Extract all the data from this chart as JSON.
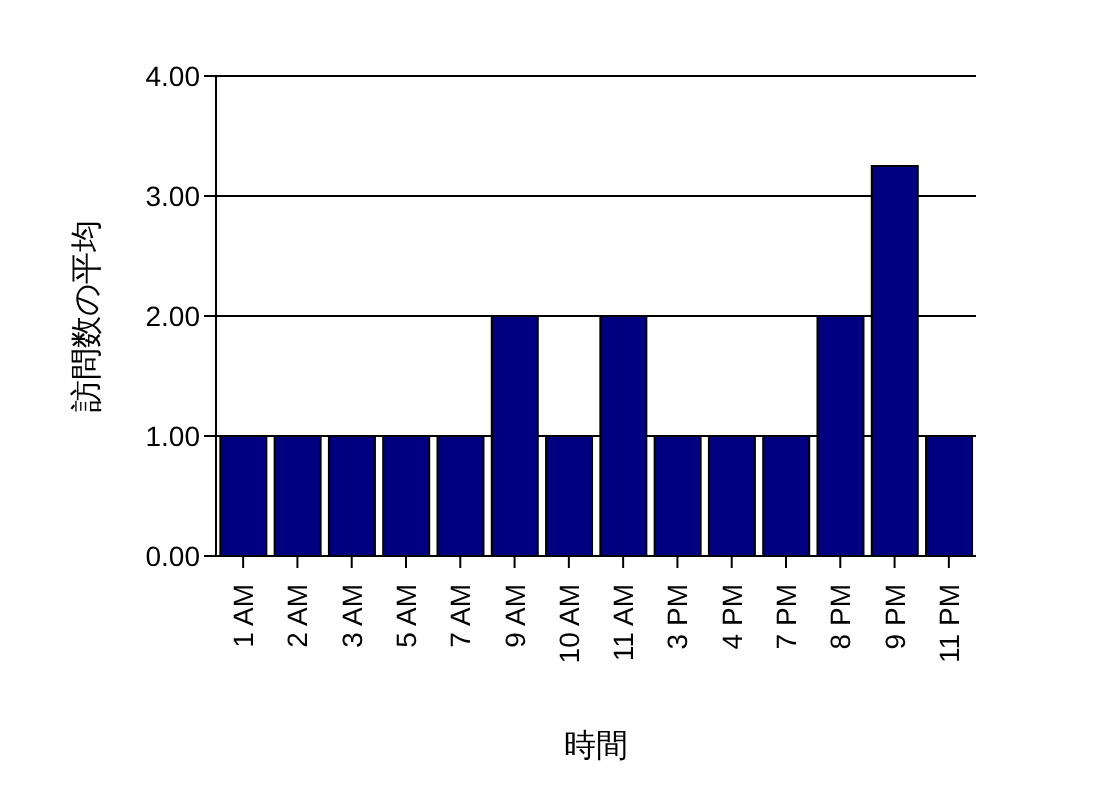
{
  "chart_data": {
    "type": "bar",
    "xlabel": "時間",
    "ylabel": "訪問数の平均",
    "categories": [
      "1 AM",
      "2 AM",
      "3 AM",
      "5 AM",
      "7 AM",
      "9 AM",
      "10 AM",
      "11 AM",
      "3 PM",
      "4 PM",
      "7 PM",
      "8 PM",
      "9 PM",
      "11 PM"
    ],
    "values": [
      1,
      1,
      1,
      1,
      1,
      2,
      1,
      2,
      1,
      1,
      1,
      2,
      3.25,
      1
    ],
    "color": "#000080",
    "ylim": [
      0,
      4
    ],
    "yticks": [
      {
        "value": 0,
        "label": "0.00"
      },
      {
        "value": 1,
        "label": "1.00"
      },
      {
        "value": 2,
        "label": "2.00"
      },
      {
        "value": 3,
        "label": "3.00"
      },
      {
        "value": 4,
        "label": "4.00"
      }
    ],
    "grid": "y",
    "legend": false
  }
}
